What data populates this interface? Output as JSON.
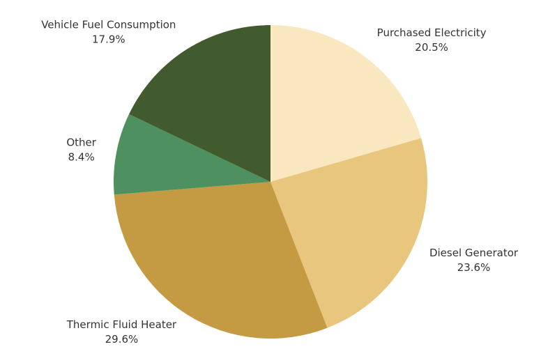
{
  "chart_data": {
    "type": "pie",
    "categories": [
      "Purchased Electricity",
      "Diesel Generator",
      "Thermic Fluid Heater",
      "Other",
      "Vehicle Fuel Consumption"
    ],
    "values": [
      20.5,
      23.6,
      29.6,
      8.4,
      17.9
    ],
    "value_labels": [
      "20.5%",
      "23.6%",
      "29.6%",
      "8.4%",
      "17.9%"
    ],
    "colors": [
      "#f9e7c0",
      "#e8c67d",
      "#c49b43",
      "#4e9060",
      "#425b2e"
    ]
  }
}
